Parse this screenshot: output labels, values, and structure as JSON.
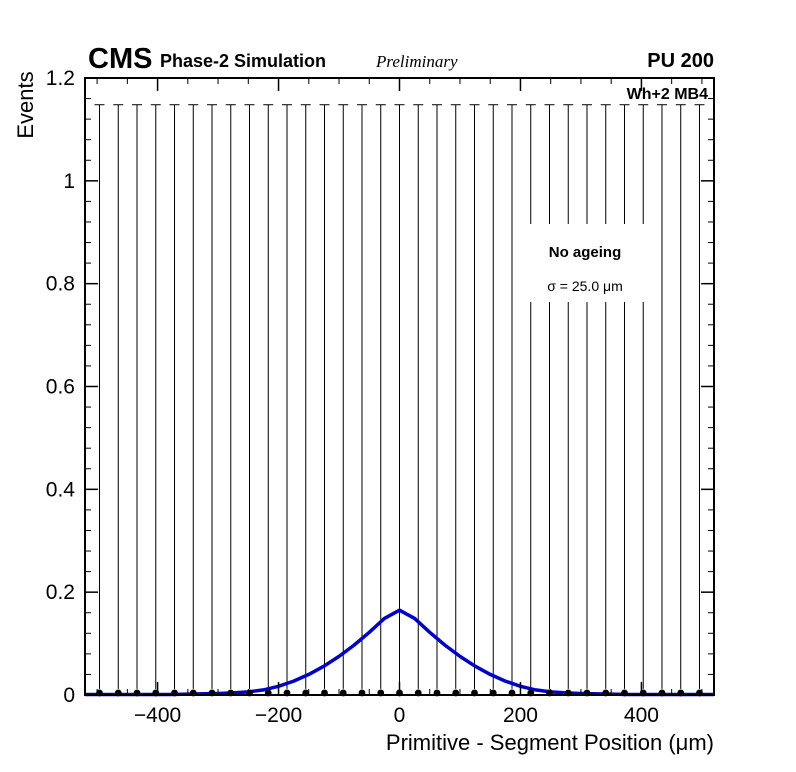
{
  "header": {
    "experiment": "CMS",
    "context": "Phase-2 Simulation",
    "status": "Preliminary",
    "pileup": "PU 200"
  },
  "plot": {
    "chamber_label": "Wh+2 MB4",
    "legend": {
      "title": "No ageing",
      "sigma": "σ = 25.0 μm"
    }
  },
  "chart_data": {
    "type": "scatter",
    "title": "",
    "xlabel": "Primitive - Segment Position (μm)",
    "ylabel": "Events",
    "xlim": [
      -520,
      520
    ],
    "ylim": [
      0,
      1.2
    ],
    "xticks": [
      -400,
      -200,
      0,
      200,
      400
    ],
    "xtick_labels": [
      "−400",
      "−200",
      "0",
      "200",
      "400"
    ],
    "x_minor_step": 50,
    "yticks": [
      0,
      0.2,
      0.4,
      0.6,
      0.8,
      1.0,
      1.2
    ],
    "ytick_labels": [
      "0",
      "0.2",
      "0.4",
      "0.6",
      "0.8",
      "1",
      "1.2"
    ],
    "y_minor_step": 0.04,
    "grid": false,
    "legend_position": "upper-right-inside",
    "series": [
      {
        "name": "data-points",
        "type": "errorbar",
        "color": "#000000",
        "marker": "circle",
        "marker_y": 0.004,
        "err_low": 0.012,
        "err_top": 1.148,
        "x": [
          -496,
          -465,
          -434,
          -403,
          -372,
          -341,
          -310,
          -279,
          -248,
          -217,
          -186,
          -155,
          -124,
          -93,
          -62,
          -31,
          0,
          31,
          62,
          93,
          124,
          155,
          186,
          217,
          248,
          279,
          310,
          341,
          372,
          403,
          434,
          465,
          496
        ]
      },
      {
        "name": "fit-curve",
        "type": "line",
        "color": "#0000cc",
        "sigma_um": 25.0,
        "x": [
          -520,
          -440,
          -380,
          -340,
          -300,
          -275,
          -250,
          -225,
          -200,
          -175,
          -150,
          -125,
          -100,
          -75,
          -50,
          -25,
          0,
          25,
          50,
          75,
          100,
          125,
          150,
          175,
          200,
          225,
          250,
          275,
          300,
          340,
          380,
          440,
          520
        ],
        "y": [
          0.001,
          0.001,
          0.001,
          0.002,
          0.003,
          0.004,
          0.006,
          0.01,
          0.017,
          0.027,
          0.04,
          0.056,
          0.075,
          0.097,
          0.122,
          0.149,
          0.165,
          0.149,
          0.122,
          0.097,
          0.075,
          0.056,
          0.04,
          0.027,
          0.017,
          0.01,
          0.006,
          0.004,
          0.003,
          0.002,
          0.001,
          0.001,
          0.001
        ]
      }
    ]
  }
}
